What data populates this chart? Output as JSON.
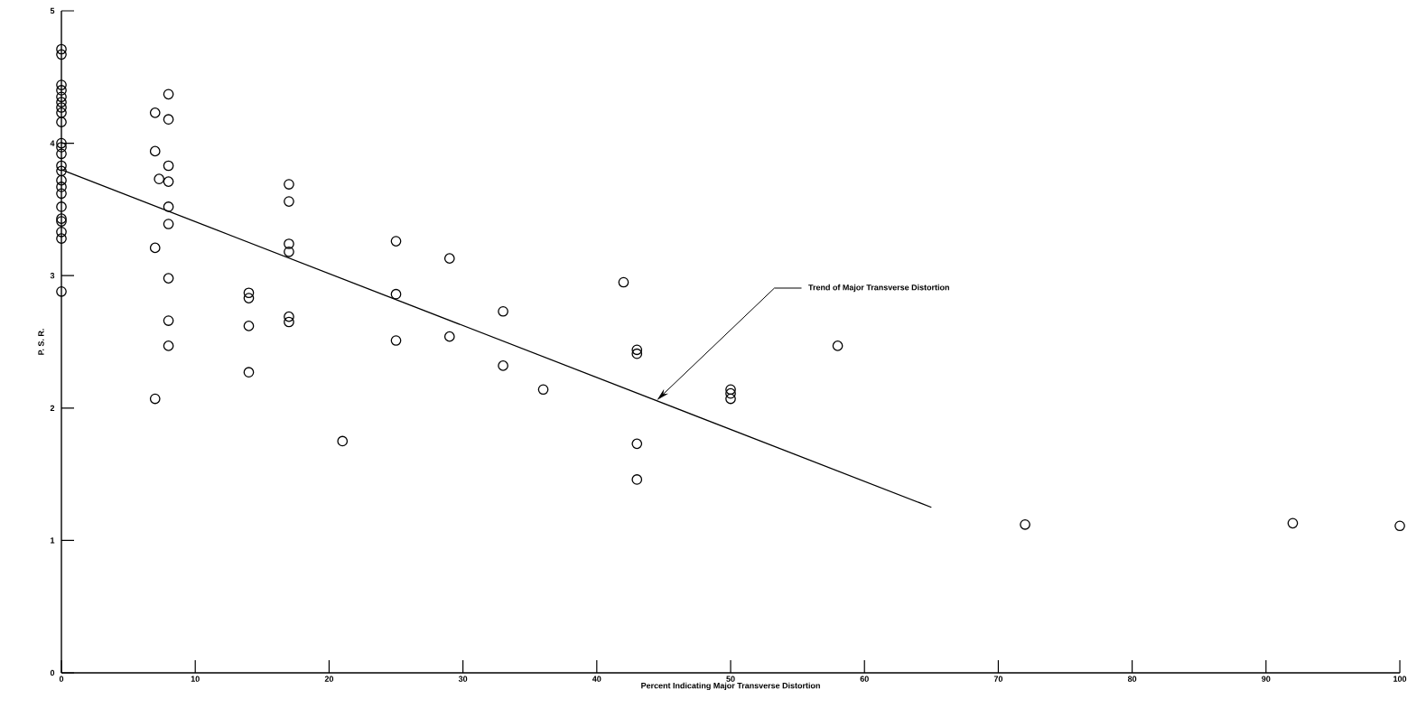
{
  "chart_data": {
    "type": "scatter",
    "xlabel": "Percent Indicating Major Transverse Distortion",
    "ylabel": "P. S. R.",
    "xlim": [
      0,
      100
    ],
    "ylim": [
      0,
      5
    ],
    "xticks": [
      0,
      10,
      20,
      30,
      40,
      50,
      60,
      70,
      80,
      90,
      100
    ],
    "yticks": [
      0,
      1,
      2,
      3,
      4,
      5
    ],
    "grid": false,
    "marker": "circle",
    "series": [
      {
        "color": "#000000",
        "x": [
          0,
          0,
          0,
          0,
          0,
          0,
          0,
          0,
          0,
          0,
          0,
          0,
          0,
          0,
          0,
          0,
          0,
          0,
          0,
          0,
          0,
          0,
          0,
          7,
          7,
          7.3,
          7,
          7,
          8,
          8,
          8,
          8,
          8,
          8,
          8,
          8,
          8,
          14,
          14,
          14,
          14,
          17,
          17,
          17,
          17,
          17,
          17,
          21,
          25,
          25,
          25,
          29,
          29,
          33,
          33,
          36,
          42,
          43,
          43,
          43,
          43,
          50,
          50,
          50,
          58,
          72,
          92,
          100
        ],
        "values": [
          4.71,
          4.67,
          4.44,
          4.4,
          4.35,
          4.31,
          4.27,
          4.23,
          4.16,
          4.0,
          3.97,
          3.92,
          3.83,
          3.79,
          3.72,
          3.67,
          3.62,
          3.52,
          3.43,
          3.41,
          3.33,
          3.28,
          2.88,
          4.23,
          3.94,
          3.73,
          3.21,
          2.07,
          4.37,
          4.18,
          3.83,
          3.71,
          3.52,
          3.39,
          2.98,
          2.66,
          2.47,
          2.87,
          2.83,
          2.62,
          2.27,
          3.69,
          3.56,
          3.24,
          3.18,
          2.69,
          2.65,
          1.75,
          3.26,
          2.86,
          2.51,
          3.13,
          2.54,
          2.73,
          2.32,
          2.14,
          2.95,
          2.44,
          2.41,
          1.73,
          1.46,
          2.14,
          2.11,
          2.07,
          2.47,
          1.12,
          1.13,
          1.11
        ]
      },
      {
        "type": "line",
        "color": "#000000",
        "marker": "none",
        "line_style": "solid",
        "x": [
          0,
          65
        ],
        "values": [
          3.8,
          1.25
        ]
      }
    ],
    "annotations": [
      {
        "text": "Trend of Major Transverse Distortion",
        "x": 44.5,
        "y": 2.06
      }
    ]
  }
}
